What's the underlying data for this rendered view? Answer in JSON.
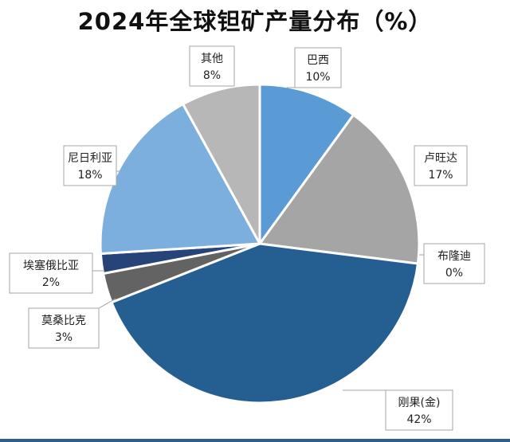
{
  "chart_data": {
    "type": "pie",
    "title": "2024年全球钽矿产量分布（%）",
    "start_angle_deg": 0,
    "direction": "clockwise",
    "slices": [
      {
        "name": "巴西",
        "value": 10,
        "label": "10%",
        "color": "#5b9bd5"
      },
      {
        "name": "卢旺达",
        "value": 17,
        "label": "17%",
        "color": "#a5a5a5"
      },
      {
        "name": "布隆迪",
        "value": 0,
        "label": "0%",
        "color": "#264478"
      },
      {
        "name": "刚果(金)",
        "value": 42,
        "label": "42%",
        "color": "#255e91"
      },
      {
        "name": "莫桑比克",
        "value": 3,
        "label": "3%",
        "color": "#636363"
      },
      {
        "name": "埃塞俄比亚",
        "value": 2,
        "label": "2%",
        "color": "#264478"
      },
      {
        "name": "尼日利亚",
        "value": 18,
        "label": "18%",
        "color": "#7cafdd"
      },
      {
        "name": "其他",
        "value": 8,
        "label": "8%",
        "color": "#b7b7b7"
      }
    ]
  }
}
